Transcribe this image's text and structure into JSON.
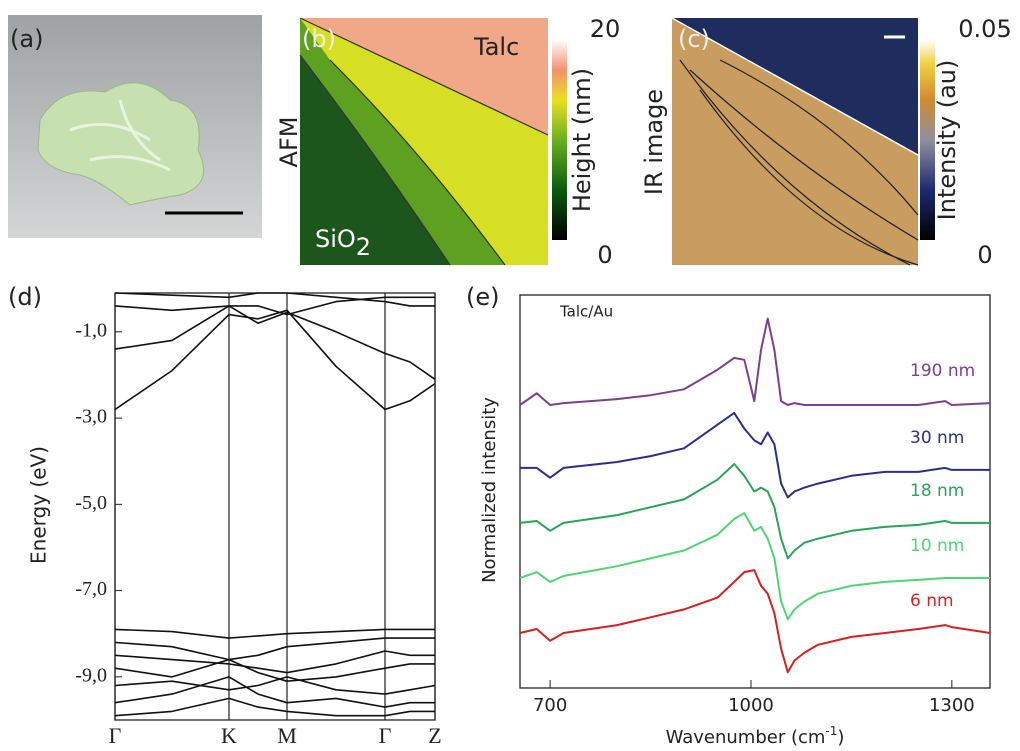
{
  "panel_labels": [
    "(a)",
    "(b)",
    "(c)",
    "(d)",
    "(e)"
  ],
  "images": {
    "b": {
      "side_label": "AFM",
      "top_label": "Talc",
      "bottom_label": [
        "SiO",
        "2"
      ],
      "colorbar": {
        "label": "Height (nm)",
        "lim": [
          0,
          20
        ]
      }
    },
    "c": {
      "side_label": "IR image",
      "colorbar": {
        "label": "Intensity (au)",
        "lim": [
          0,
          0.05
        ]
      }
    }
  },
  "chart_data": [
    {
      "type": "line",
      "ylabel": "Energy (eV)",
      "x": [
        0,
        0.57,
        1.14,
        1.43,
        1.72,
        2.21,
        2.7,
        2.95,
        3.2
      ],
      "xlim": [
        0,
        3.2
      ],
      "xticks": [
        {
          "value": 0,
          "label": "Γ"
        },
        {
          "value": 1.14,
          "label": "K"
        },
        {
          "value": 1.72,
          "label": "M"
        },
        {
          "value": 2.7,
          "label": "Γ"
        },
        {
          "value": 3.2,
          "label": "Z"
        }
      ],
      "xgrid": true,
      "ylim": [
        -10,
        -0.1
      ],
      "yticks": [
        {
          "value": -1,
          "label": "-1,0"
        },
        {
          "value": -3,
          "label": "-3,0"
        },
        {
          "value": -5,
          "label": "-5,0"
        },
        {
          "value": -7,
          "label": "-7,0"
        },
        {
          "value": -9,
          "label": "-9,0"
        }
      ],
      "series": [
        {
          "color": "#111111",
          "values": [
            -0.4,
            -0.5,
            -0.4,
            -0.4,
            -0.6,
            -0.3,
            -0.2,
            -0.2,
            -0.2
          ]
        },
        {
          "color": "#111111",
          "values": [
            -1.4,
            -1.2,
            -0.4,
            -0.8,
            -0.55,
            -1.0,
            -1.5,
            -1.7,
            -2.1
          ]
        },
        {
          "color": "#111111",
          "values": [
            -2.8,
            -1.9,
            -0.6,
            -0.7,
            -0.5,
            -1.8,
            -2.8,
            -2.6,
            -2.2
          ]
        },
        {
          "color": "#111111",
          "values": [
            -0.1,
            -0.15,
            -0.2,
            -0.1,
            -0.1,
            -0.2,
            -0.3,
            -0.4,
            -0.4
          ]
        },
        {
          "color": "#111111",
          "values": [
            -7.9,
            -7.95,
            -8.1,
            -8.05,
            -8.0,
            -7.95,
            -7.9,
            -7.9,
            -7.9
          ]
        },
        {
          "color": "#111111",
          "values": [
            -8.2,
            -8.3,
            -8.6,
            -8.5,
            -8.3,
            -8.2,
            -8.1,
            -8.1,
            -8.1
          ]
        },
        {
          "color": "#111111",
          "values": [
            -8.5,
            -8.6,
            -8.7,
            -8.8,
            -8.9,
            -8.7,
            -8.4,
            -8.5,
            -8.5
          ]
        },
        {
          "color": "#111111",
          "values": [
            -8.8,
            -9.0,
            -8.6,
            -8.9,
            -9.1,
            -9.0,
            -8.8,
            -8.7,
            -8.7
          ]
        },
        {
          "color": "#111111",
          "values": [
            -9.2,
            -9.1,
            -9.3,
            -9.2,
            -9.0,
            -9.3,
            -9.4,
            -9.3,
            -9.2
          ]
        },
        {
          "color": "#111111",
          "values": [
            -9.6,
            -9.4,
            -9.0,
            -9.4,
            -9.6,
            -9.5,
            -9.7,
            -9.6,
            -9.6
          ]
        },
        {
          "color": "#111111",
          "values": [
            -9.9,
            -9.8,
            -9.5,
            -9.7,
            -9.8,
            -9.9,
            -9.9,
            -9.8,
            -9.8
          ]
        }
      ]
    },
    {
      "type": "line",
      "ylabel": "Normalized intensity",
      "xlabel": [
        "Wavenumber (cm",
        "-1",
        ")"
      ],
      "annotation": "Talc/Au",
      "x": [
        655,
        680,
        700,
        720,
        800,
        850,
        900,
        950,
        975,
        990,
        1005,
        1015,
        1025,
        1035,
        1045,
        1055,
        1065,
        1080,
        1100,
        1150,
        1200,
        1250,
        1290,
        1300,
        1357
      ],
      "xlim": [
        655,
        1357
      ],
      "xticks": [
        700,
        1000,
        1300
      ],
      "ylim": [
        0,
        10
      ],
      "series": [
        {
          "name": "190 nm",
          "color": "#7b3f8c",
          "values": [
            7.2,
            7.5,
            7.2,
            7.25,
            7.35,
            7.45,
            7.6,
            8.1,
            8.4,
            8.35,
            7.3,
            8.6,
            9.4,
            8.6,
            7.3,
            7.2,
            7.25,
            7.2,
            7.2,
            7.2,
            7.2,
            7.2,
            7.3,
            7.2,
            7.25
          ]
        },
        {
          "name": "30 nm",
          "color": "#2b2e8f",
          "values": [
            5.6,
            5.6,
            5.35,
            5.6,
            5.75,
            5.9,
            6.1,
            6.7,
            7.0,
            6.6,
            6.3,
            6.2,
            6.5,
            6.2,
            5.2,
            4.85,
            5.0,
            5.1,
            5.2,
            5.4,
            5.5,
            5.5,
            5.6,
            5.55,
            5.55
          ]
        },
        {
          "name": "18 nm",
          "color": "#2aa35a",
          "values": [
            4.2,
            4.25,
            4.0,
            4.2,
            4.4,
            4.6,
            4.8,
            5.3,
            5.7,
            5.4,
            5.0,
            5.1,
            5.0,
            4.6,
            3.8,
            3.3,
            3.5,
            3.7,
            3.8,
            4.0,
            4.1,
            4.15,
            4.25,
            4.2,
            4.2
          ]
        },
        {
          "name": "10 nm",
          "color": "#4fd474",
          "values": [
            2.8,
            2.95,
            2.7,
            2.85,
            3.1,
            3.3,
            3.5,
            3.9,
            4.3,
            4.45,
            4.0,
            4.1,
            3.8,
            3.3,
            2.2,
            1.75,
            2.0,
            2.2,
            2.4,
            2.6,
            2.7,
            2.75,
            2.8,
            2.8,
            2.8
          ]
        },
        {
          "name": "6 nm",
          "color": "#d62020",
          "values": [
            1.4,
            1.5,
            1.2,
            1.4,
            1.6,
            1.8,
            2.0,
            2.3,
            2.7,
            2.95,
            3.0,
            2.6,
            2.4,
            1.9,
            1.0,
            0.4,
            0.7,
            0.9,
            1.1,
            1.3,
            1.4,
            1.5,
            1.6,
            1.55,
            1.4
          ]
        }
      ]
    }
  ]
}
